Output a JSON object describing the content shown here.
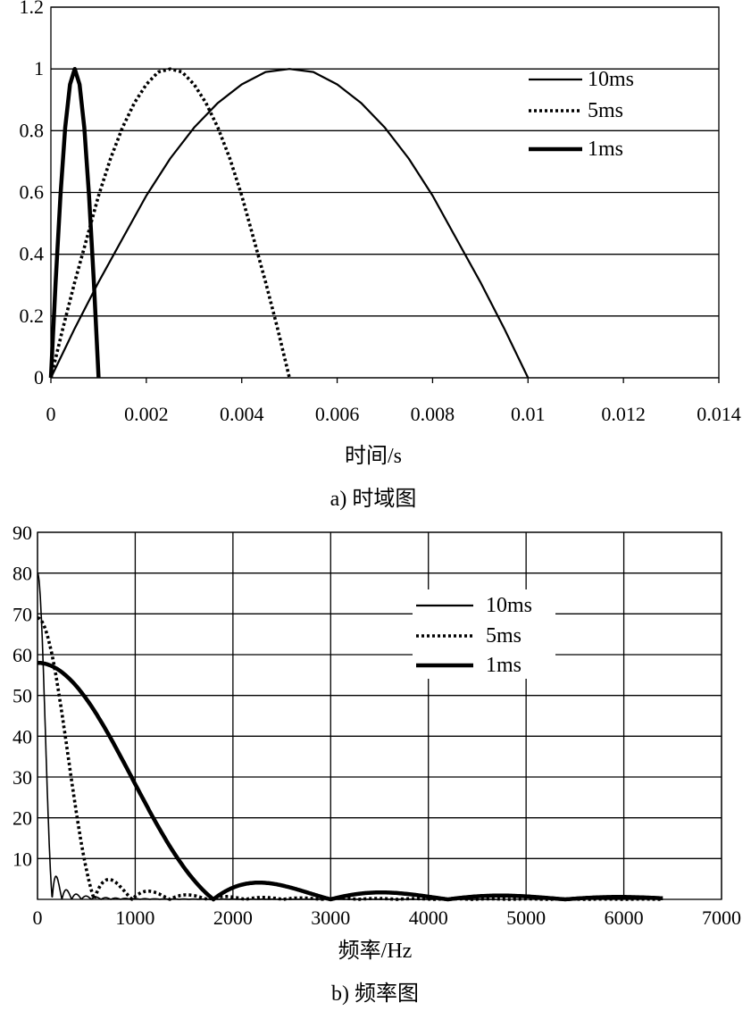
{
  "chart_data": [
    {
      "id": "time",
      "type": "line",
      "caption": "a) 时域图",
      "xlabel": "时间/s",
      "ylabel": "",
      "xlim": [
        0,
        0.014
      ],
      "ylim": [
        0,
        1.2
      ],
      "x_ticks": [
        "0",
        "0.002",
        "0.004",
        "0.006",
        "0.008",
        "0.01",
        "0.012",
        "0.014"
      ],
      "y_ticks": [
        "0",
        "0.2",
        "0.4",
        "0.6",
        "0.8",
        "1",
        "1.2"
      ],
      "grid": "horizontal",
      "legend_position": "top-right",
      "series": [
        {
          "name": "10ms",
          "style": "thin",
          "x": [
            0,
            0.0005,
            0.001,
            0.0015,
            0.002,
            0.0025,
            0.003,
            0.0035,
            0.004,
            0.0045,
            0.005,
            0.0055,
            0.006,
            0.0065,
            0.007,
            0.0075,
            0.008,
            0.0085,
            0.009,
            0.0095,
            0.01
          ],
          "y": [
            0,
            0.16,
            0.31,
            0.45,
            0.59,
            0.71,
            0.81,
            0.89,
            0.95,
            0.99,
            1.0,
            0.99,
            0.95,
            0.89,
            0.81,
            0.71,
            0.59,
            0.45,
            0.31,
            0.16,
            0
          ]
        },
        {
          "name": "5ms",
          "style": "dotted",
          "x": [
            0,
            0.00025,
            0.0005,
            0.00075,
            0.001,
            0.00125,
            0.0015,
            0.00175,
            0.002,
            0.00225,
            0.0025,
            0.00275,
            0.003,
            0.00325,
            0.0035,
            0.00375,
            0.004,
            0.00425,
            0.0045,
            0.00475,
            0.005
          ],
          "y": [
            0,
            0.16,
            0.31,
            0.45,
            0.59,
            0.71,
            0.81,
            0.89,
            0.95,
            0.99,
            1.0,
            0.99,
            0.95,
            0.89,
            0.81,
            0.71,
            0.59,
            0.45,
            0.31,
            0.16,
            0
          ]
        },
        {
          "name": "1ms",
          "style": "thick",
          "x": [
            0,
            0.0001,
            0.0002,
            0.0003,
            0.0004,
            0.0005,
            0.0006,
            0.0007,
            0.0008,
            0.0009,
            0.001
          ],
          "y": [
            0,
            0.31,
            0.59,
            0.81,
            0.95,
            1.0,
            0.95,
            0.81,
            0.59,
            0.31,
            0
          ]
        }
      ]
    },
    {
      "id": "freq",
      "type": "line",
      "caption": "b) 频率图",
      "xlabel": "频率/Hz",
      "ylabel": "",
      "xlim": [
        0,
        7000
      ],
      "ylim": [
        0,
        90
      ],
      "x_ticks": [
        "0",
        "1000",
        "2000",
        "3000",
        "4000",
        "5000",
        "6000",
        "7000"
      ],
      "y_ticks": [
        "10",
        "20",
        "30",
        "40",
        "50",
        "60",
        "70",
        "80",
        "90"
      ],
      "y_ticks_values": [
        10,
        20,
        30,
        40,
        50,
        60,
        70,
        80,
        90
      ],
      "x_ticks_values": [
        0,
        1000,
        2000,
        3000,
        4000,
        5000,
        6000,
        7000
      ],
      "grid": "both",
      "legend_position": "top-right",
      "series": [
        {
          "name": "10ms",
          "style": "thin",
          "peak": 80,
          "first_null_hz": 150,
          "x_end": 4700
        },
        {
          "name": "5ms",
          "style": "dotted",
          "peak": 69,
          "first_null_hz": 580,
          "x_end": 6400
        },
        {
          "name": "1ms",
          "style": "thick",
          "peak": 58,
          "first_null_hz": 1800,
          "x_end": 6400
        }
      ]
    }
  ]
}
